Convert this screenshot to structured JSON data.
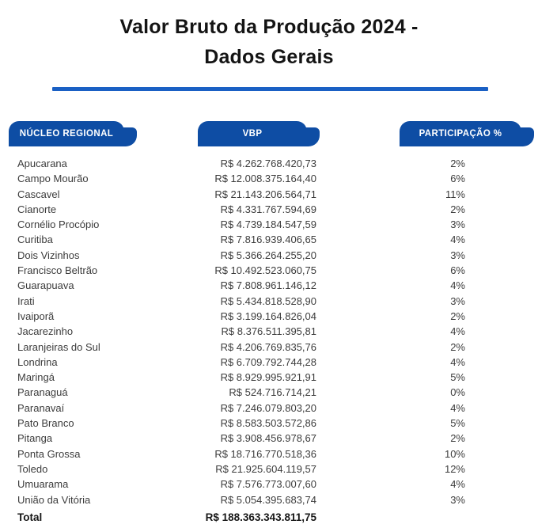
{
  "page": {
    "title_line1": "Valor Bruto da Produção 2024 -",
    "title_line2": "Dados Gerais"
  },
  "colors": {
    "header_pill_blue": "#0E4DA4",
    "divider_blue": "#1A60C4",
    "body_text": "#3C3C3C"
  },
  "table": {
    "headers": {
      "nucleo": "NÚCLEO REGIONAL",
      "vbp": "VBP",
      "participacao": "PARTICIPAÇÃO %"
    },
    "rows": [
      {
        "nucleo": "Apucarana",
        "vbp": "R$ 4.262.768.420,73",
        "participacao": "2%"
      },
      {
        "nucleo": "Campo Mourão",
        "vbp": "R$ 12.008.375.164,40",
        "participacao": "6%"
      },
      {
        "nucleo": "Cascavel",
        "vbp": "R$ 21.143.206.564,71",
        "participacao": "11%"
      },
      {
        "nucleo": "Cianorte",
        "vbp": "R$ 4.331.767.594,69",
        "participacao": "2%"
      },
      {
        "nucleo": "Cornélio Procópio",
        "vbp": "R$ 4.739.184.547,59",
        "participacao": "3%"
      },
      {
        "nucleo": "Curitiba",
        "vbp": "R$ 7.816.939.406,65",
        "participacao": "4%"
      },
      {
        "nucleo": "Dois Vizinhos",
        "vbp": "R$ 5.366.264.255,20",
        "participacao": "3%"
      },
      {
        "nucleo": "Francisco Beltrão",
        "vbp": "R$ 10.492.523.060,75",
        "participacao": "6%"
      },
      {
        "nucleo": "Guarapuava",
        "vbp": "R$ 7.808.961.146,12",
        "participacao": "4%"
      },
      {
        "nucleo": "Irati",
        "vbp": "R$ 5.434.818.528,90",
        "participacao": "3%"
      },
      {
        "nucleo": "Ivaiporã",
        "vbp": "R$ 3.199.164.826,04",
        "participacao": "2%"
      },
      {
        "nucleo": "Jacarezinho",
        "vbp": "R$ 8.376.511.395,81",
        "participacao": "4%"
      },
      {
        "nucleo": "Laranjeiras do Sul",
        "vbp": "R$ 4.206.769.835,76",
        "participacao": "2%"
      },
      {
        "nucleo": "Londrina",
        "vbp": "R$ 6.709.792.744,28",
        "participacao": "4%"
      },
      {
        "nucleo": "Maringá",
        "vbp": "R$ 8.929.995.921,91",
        "participacao": "5%"
      },
      {
        "nucleo": "Paranaguá",
        "vbp": "R$ 524.716.714,21",
        "participacao": "0%"
      },
      {
        "nucleo": "Paranavaí",
        "vbp": "R$ 7.246.079.803,20",
        "participacao": "4%"
      },
      {
        "nucleo": "Pato Branco",
        "vbp": "R$ 8.583.503.572,86",
        "participacao": "5%"
      },
      {
        "nucleo": "Pitanga",
        "vbp": "R$ 3.908.456.978,67",
        "participacao": "2%"
      },
      {
        "nucleo": "Ponta Grossa",
        "vbp": "R$ 18.716.770.518,36",
        "participacao": "10%"
      },
      {
        "nucleo": "Toledo",
        "vbp": "R$ 21.925.604.119,57",
        "participacao": "12%"
      },
      {
        "nucleo": "Umuarama",
        "vbp": "R$ 7.576.773.007,60",
        "participacao": "4%"
      },
      {
        "nucleo": "União da Vitória",
        "vbp": "R$ 5.054.395.683,74",
        "participacao": "3%"
      }
    ],
    "total": {
      "label": "Total",
      "vbp": "R$ 188.363.343.811,75"
    }
  }
}
